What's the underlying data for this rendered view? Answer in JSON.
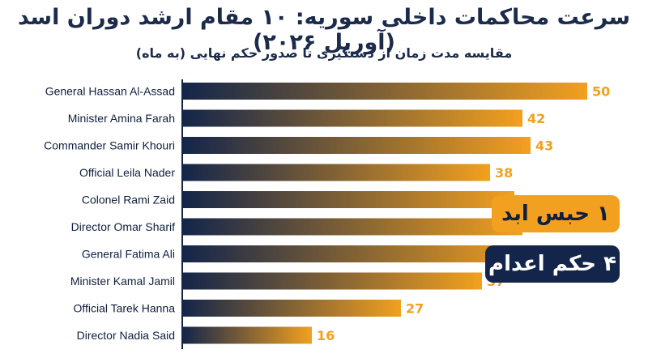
{
  "title": "سرعت محاکمات داخلی سوریه: ۱۰ مقام ارشد دوران اسد (آوریل ۲۰۲۶)",
  "subtitle": "مقایسه مدت زمان از دستگیری تا صدور حکم نهایی (به ماه)",
  "badges": {
    "life_sentence": "۱ حبس ابد",
    "death_sentence": "۴ حکم اعدام"
  },
  "colors": {
    "bar_start": "#13254a",
    "bar_end": "#f2a01f",
    "value_text": "#f2a01f",
    "label_text": "#0f1f3d",
    "axis_line": "#13254a"
  },
  "chart_data": {
    "type": "bar",
    "orientation": "horizontal",
    "categories": [
      "General Hassan Al-Assad",
      "Minister Amina Farah",
      "Commander Samir Khouri",
      "Official Leila Nader",
      "Colonel Rami Zaid",
      "Director Omar Sharif",
      "General Fatima Ali",
      "Minister Kamal Jamil",
      "Official Tarek Hanna",
      "Director Nadia Said"
    ],
    "values": [
      50,
      42,
      43,
      38,
      41,
      42,
      43,
      37,
      27,
      16
    ],
    "gradient_fill": true,
    "grid": false
  }
}
